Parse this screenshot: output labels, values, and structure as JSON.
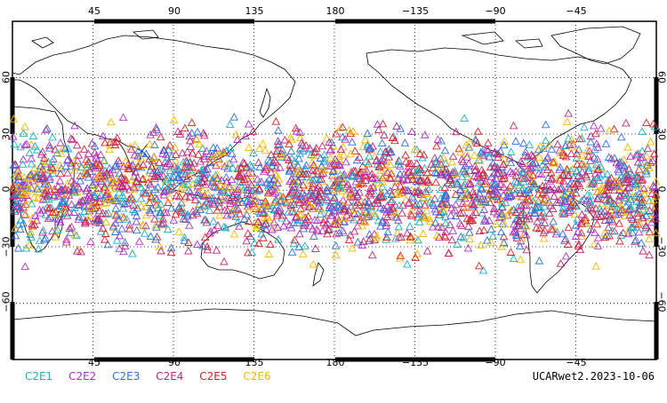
{
  "map": {
    "projection": "cylindrical-equidistant",
    "lon_range": [
      0,
      360
    ],
    "lat_range": [
      -90,
      90
    ],
    "top_lon_ticks": [
      "45",
      "90",
      "135",
      "180",
      "−135",
      "−90",
      "−45"
    ],
    "bottom_lon_ticks": [
      "45",
      "90",
      "135",
      "180",
      "−135",
      "−90",
      "−45"
    ],
    "lat_ticks": [
      "60",
      "30",
      "0",
      "−30",
      "−60"
    ],
    "grid": "dotted",
    "coastline_color": "#000000",
    "marker_shape": "open-triangle"
  },
  "legend": {
    "items": [
      {
        "label": "C2E1",
        "color": "#1ab0c8"
      },
      {
        "label": "C2E2",
        "color": "#b030c8"
      },
      {
        "label": "C2E3",
        "color": "#2a70e8"
      },
      {
        "label": "C2E4",
        "color": "#c02878"
      },
      {
        "label": "C2E5",
        "color": "#e02020"
      },
      {
        "label": "C2E6",
        "color": "#f8b800"
      }
    ]
  },
  "product_label": "UCARwet2.2023-10-06",
  "observation_band": {
    "lat_min": -45,
    "lat_max": 45
  }
}
